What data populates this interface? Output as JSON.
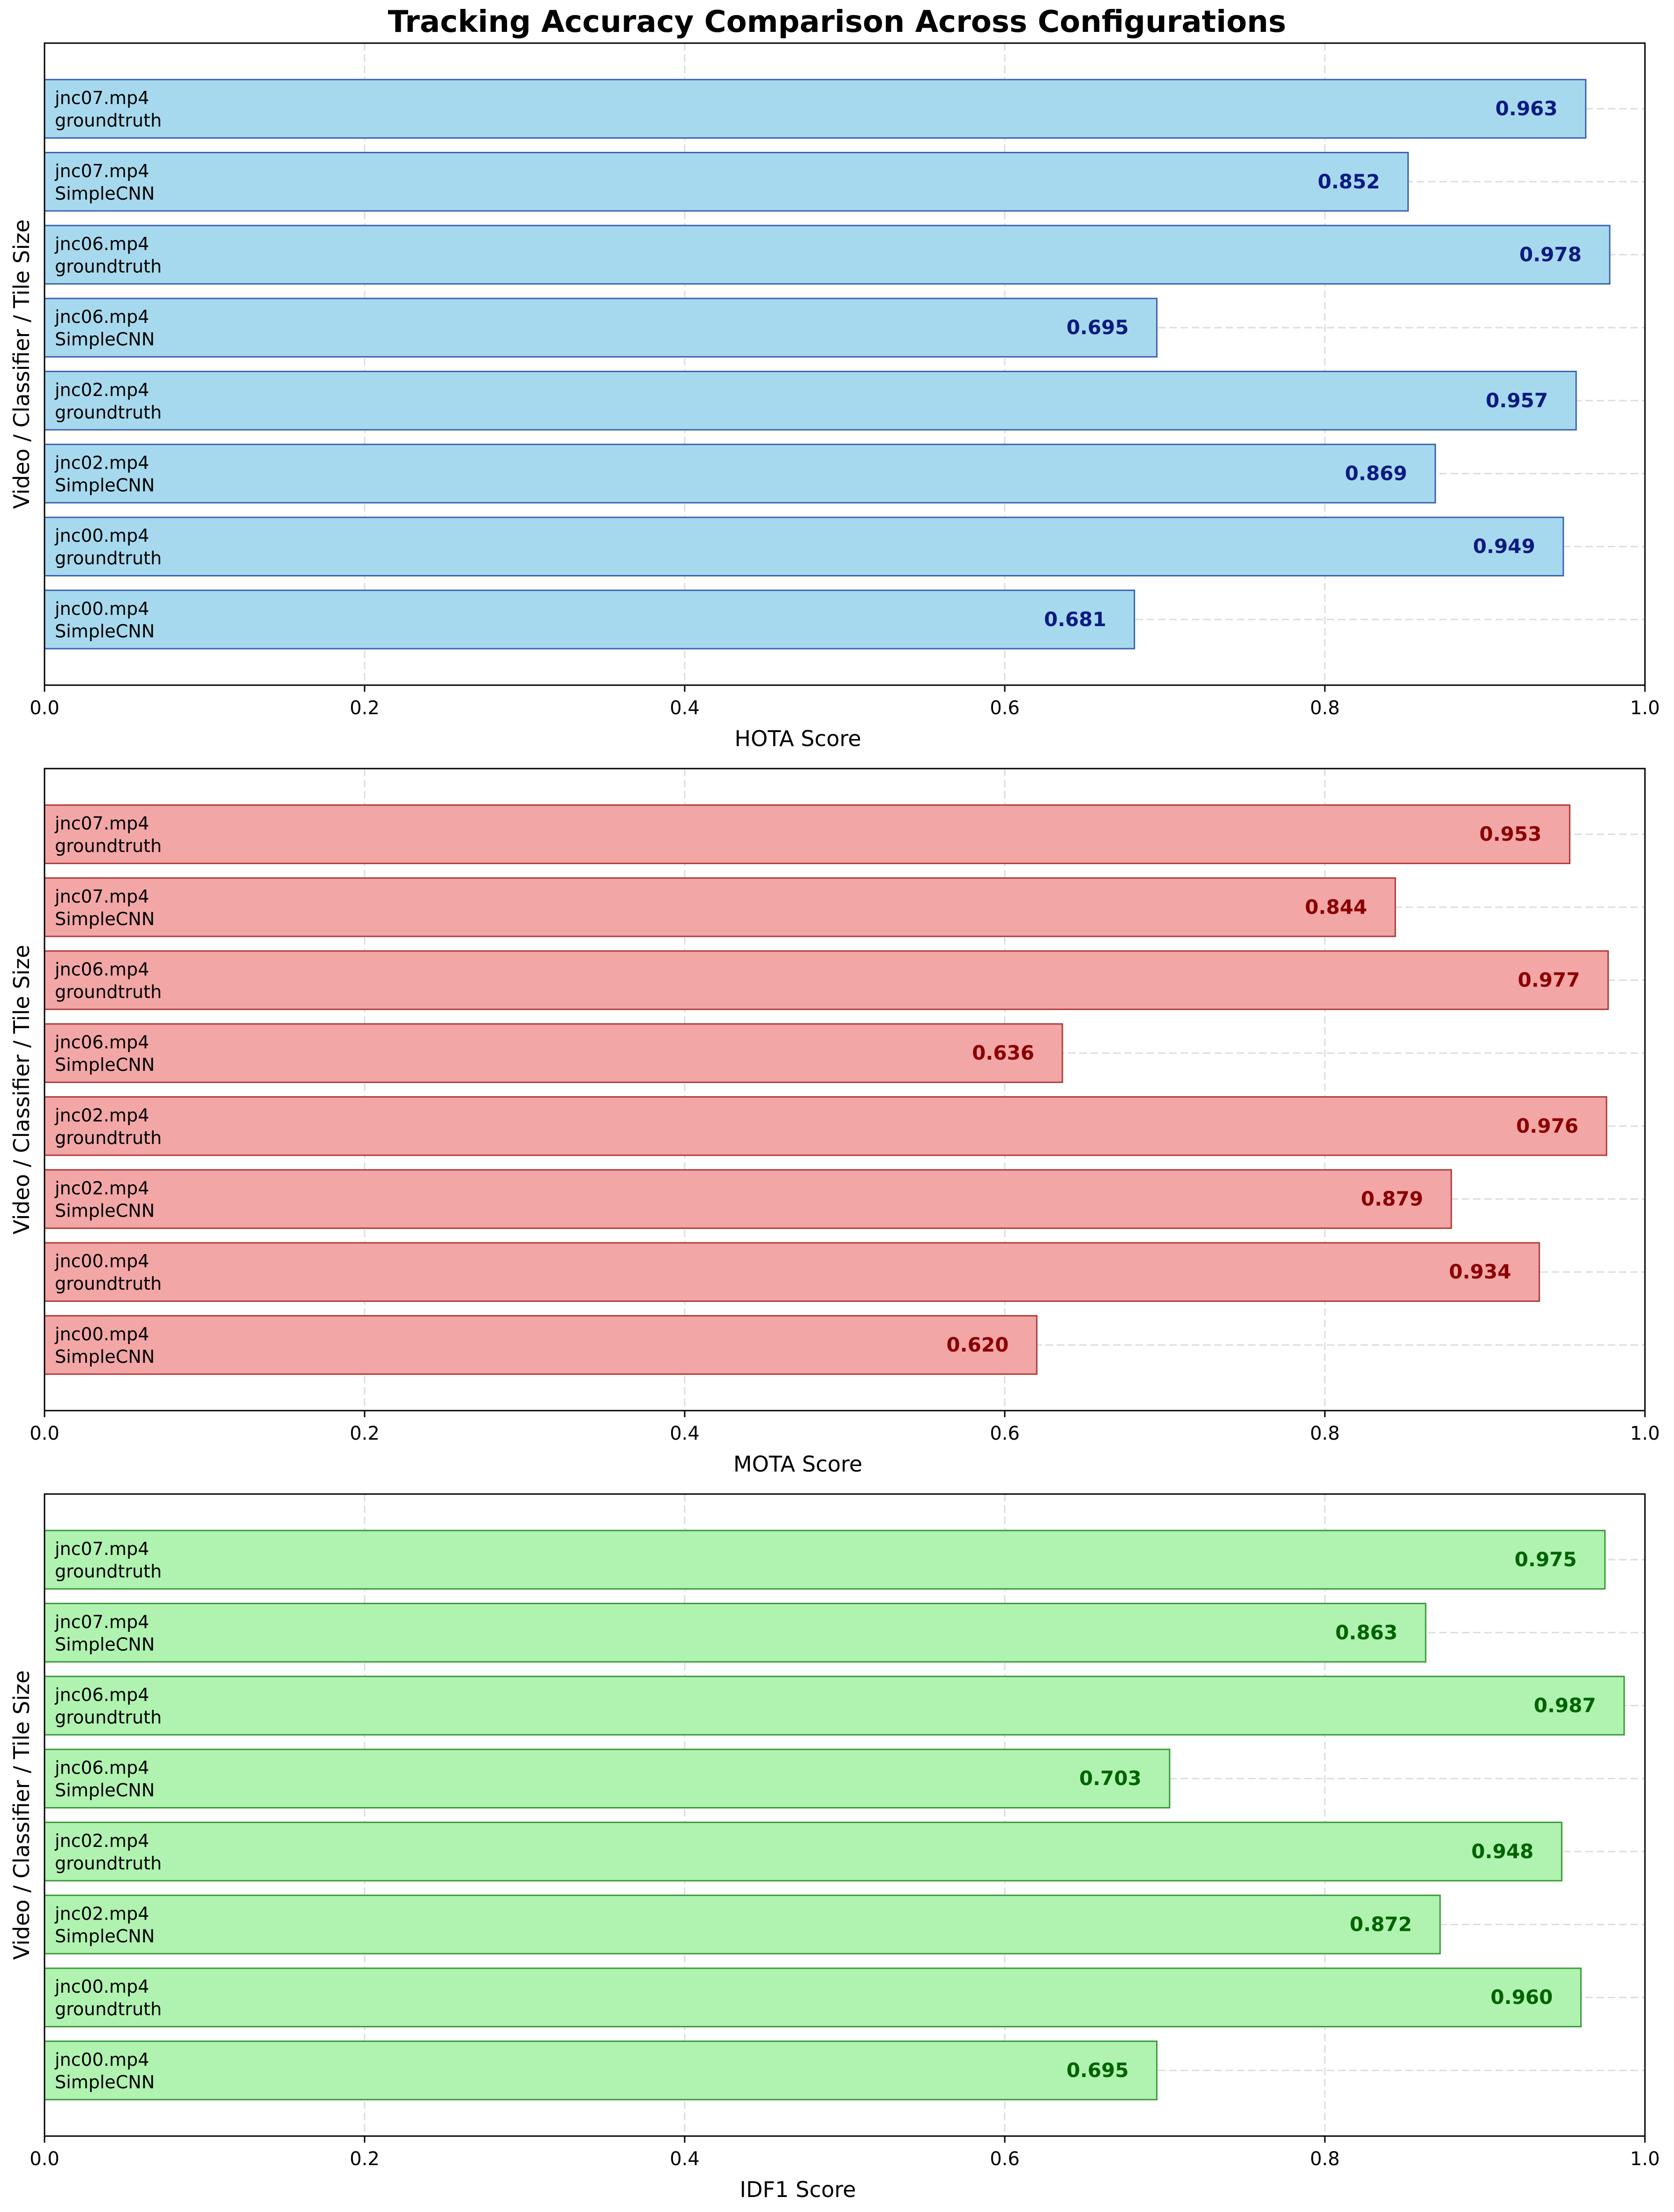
{
  "title": "Tracking Accuracy Comparison Across Configurations",
  "chart_data": [
    {
      "type": "bar",
      "orientation": "horizontal",
      "metric": "HOTA",
      "xlabel": "HOTA Score",
      "ylabel": "Video / Classifier / Tile Size",
      "xlim": [
        0,
        1
      ],
      "xticks": [
        "0.0",
        "0.2",
        "0.4",
        "0.6",
        "0.8",
        "1.0"
      ],
      "grid": true,
      "bar_color": "#a7d9ee",
      "edge_color": "#3c62b0",
      "label_color": "#0b1a80",
      "categories": [
        [
          "jnc07.mp4",
          "groundtruth"
        ],
        [
          "jnc07.mp4",
          "SimpleCNN"
        ],
        [
          "jnc06.mp4",
          "groundtruth"
        ],
        [
          "jnc06.mp4",
          "SimpleCNN"
        ],
        [
          "jnc02.mp4",
          "groundtruth"
        ],
        [
          "jnc02.mp4",
          "SimpleCNN"
        ],
        [
          "jnc00.mp4",
          "groundtruth"
        ],
        [
          "jnc00.mp4",
          "SimpleCNN"
        ]
      ],
      "values": [
        0.963,
        0.852,
        0.978,
        0.695,
        0.957,
        0.869,
        0.949,
        0.681
      ],
      "value_labels": [
        "0.963",
        "0.852",
        "0.978",
        "0.695",
        "0.957",
        "0.869",
        "0.949",
        "0.681"
      ]
    },
    {
      "type": "bar",
      "orientation": "horizontal",
      "metric": "MOTA",
      "xlabel": "MOTA Score",
      "ylabel": "Video / Classifier / Tile Size",
      "xlim": [
        0,
        1
      ],
      "xticks": [
        "0.0",
        "0.2",
        "0.4",
        "0.6",
        "0.8",
        "1.0"
      ],
      "grid": true,
      "bar_color": "#f2a6a6",
      "edge_color": "#b03a3a",
      "label_color": "#8b0000",
      "categories": [
        [
          "jnc07.mp4",
          "groundtruth"
        ],
        [
          "jnc07.mp4",
          "SimpleCNN"
        ],
        [
          "jnc06.mp4",
          "groundtruth"
        ],
        [
          "jnc06.mp4",
          "SimpleCNN"
        ],
        [
          "jnc02.mp4",
          "groundtruth"
        ],
        [
          "jnc02.mp4",
          "SimpleCNN"
        ],
        [
          "jnc00.mp4",
          "groundtruth"
        ],
        [
          "jnc00.mp4",
          "SimpleCNN"
        ]
      ],
      "values": [
        0.953,
        0.844,
        0.977,
        0.636,
        0.976,
        0.879,
        0.934,
        0.62
      ],
      "value_labels": [
        "0.953",
        "0.844",
        "0.977",
        "0.636",
        "0.976",
        "0.879",
        "0.934",
        "0.620"
      ]
    },
    {
      "type": "bar",
      "orientation": "horizontal",
      "metric": "IDF1",
      "xlabel": "IDF1 Score",
      "ylabel": "Video / Classifier / Tile Size",
      "xlim": [
        0,
        1
      ],
      "xticks": [
        "0.0",
        "0.2",
        "0.4",
        "0.6",
        "0.8",
        "1.0"
      ],
      "grid": true,
      "bar_color": "#b0f2b0",
      "edge_color": "#3a9a3a",
      "label_color": "#006400",
      "categories": [
        [
          "jnc07.mp4",
          "groundtruth"
        ],
        [
          "jnc07.mp4",
          "SimpleCNN"
        ],
        [
          "jnc06.mp4",
          "groundtruth"
        ],
        [
          "jnc06.mp4",
          "SimpleCNN"
        ],
        [
          "jnc02.mp4",
          "groundtruth"
        ],
        [
          "jnc02.mp4",
          "SimpleCNN"
        ],
        [
          "jnc00.mp4",
          "groundtruth"
        ],
        [
          "jnc00.mp4",
          "SimpleCNN"
        ]
      ],
      "values": [
        0.975,
        0.863,
        0.987,
        0.703,
        0.948,
        0.872,
        0.96,
        0.695
      ],
      "value_labels": [
        "0.975",
        "0.863",
        "0.987",
        "0.703",
        "0.948",
        "0.872",
        "0.960",
        "0.695"
      ]
    }
  ]
}
